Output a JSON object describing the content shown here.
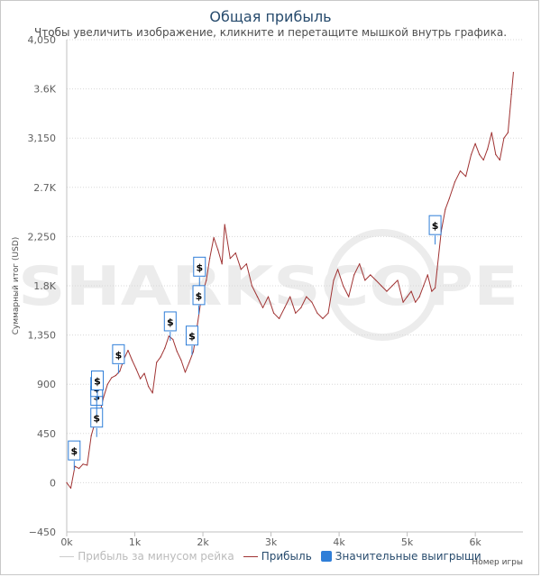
{
  "chart_data": {
    "type": "line",
    "title": "Общая прибыль",
    "subtitle": "Чтобы увеличить изображение, кликните и перетащите мышкой внутрь графика.",
    "ylabel": "Суммарный итог (USD)",
    "xlabel": "Номер игры",
    "ylim": [
      -450,
      4050
    ],
    "xlim": [
      0,
      6700
    ],
    "yticks": [
      -450,
      0,
      450,
      900,
      1350,
      1800,
      2250,
      2700,
      3150,
      3600,
      4050
    ],
    "ytick_labels": [
      "−450",
      "0",
      "450",
      "900",
      "1,350",
      "1.8K",
      "2,250",
      "2.7K",
      "3,150",
      "3.6K",
      "4,050"
    ],
    "xticks": [
      0,
      1000,
      2000,
      3000,
      4000,
      5000,
      6000
    ],
    "xtick_labels": [
      "0k",
      "1k",
      "2k",
      "3k",
      "4k",
      "5k",
      "6k"
    ],
    "grid": true,
    "legend_position": "bottom",
    "watermark": "SHARKSCOPE",
    "series": [
      {
        "name": "Прибыль",
        "color": "#a03333",
        "x": [
          0,
          60,
          120,
          180,
          240,
          300,
          360,
          420,
          480,
          540,
          600,
          660,
          720,
          780,
          840,
          900,
          960,
          1020,
          1080,
          1140,
          1200,
          1260,
          1320,
          1380,
          1440,
          1500,
          1560,
          1620,
          1680,
          1740,
          1800,
          1860,
          1920,
          1980,
          2050,
          2100,
          2160,
          2220,
          2280,
          2320,
          2400,
          2480,
          2560,
          2640,
          2720,
          2800,
          2880,
          2960,
          3040,
          3120,
          3200,
          3280,
          3360,
          3440,
          3520,
          3600,
          3680,
          3760,
          3840,
          3920,
          3980,
          4060,
          4140,
          4220,
          4300,
          4380,
          4460,
          4540,
          4620,
          4700,
          4780,
          4860,
          4940,
          5000,
          5060,
          5120,
          5180,
          5240,
          5300,
          5360,
          5410,
          5440,
          5500,
          5560,
          5620,
          5700,
          5780,
          5860,
          5940,
          6000,
          6060,
          6120,
          6180,
          6240,
          6300,
          6360,
          6420,
          6480,
          6530,
          6560
        ],
        "values": [
          0,
          -50,
          150,
          130,
          170,
          160,
          430,
          560,
          620,
          780,
          900,
          960,
          980,
          1020,
          1130,
          1210,
          1120,
          1040,
          950,
          1000,
          880,
          820,
          1100,
          1150,
          1230,
          1340,
          1310,
          1200,
          1120,
          1010,
          1100,
          1200,
          1450,
          1700,
          1850,
          2050,
          2240,
          2130,
          2000,
          2360,
          2050,
          2100,
          1950,
          2000,
          1800,
          1700,
          1600,
          1700,
          1550,
          1500,
          1600,
          1700,
          1550,
          1600,
          1700,
          1650,
          1550,
          1500,
          1550,
          1850,
          1950,
          1800,
          1700,
          1900,
          2000,
          1850,
          1900,
          1850,
          1800,
          1750,
          1800,
          1850,
          1650,
          1700,
          1750,
          1650,
          1700,
          1800,
          1900,
          1750,
          1780,
          1950,
          2300,
          2500,
          2600,
          2750,
          2850,
          2800,
          3000,
          3100,
          3000,
          2950,
          3050,
          3200,
          3000,
          2950,
          3150,
          3200,
          3550,
          3750
        ]
      }
    ],
    "markers": {
      "name": "Значительные выигрыши",
      "symbol": "$",
      "color": "#2f7ed8",
      "x": [
        110,
        440,
        440,
        440,
        450,
        760,
        1520,
        1840,
        1940,
        1950,
        5410
      ],
      "values": [
        200,
        500,
        700,
        780,
        840,
        1080,
        1380,
        1250,
        1620,
        1880,
        2260
      ]
    },
    "ghost_series": {
      "name": "Прибыль за минусом рейка",
      "color": "#bbbbbb"
    }
  },
  "legend": {
    "items": [
      {
        "label": "Прибыль за минусом рейка",
        "color": "#bbbbbb",
        "muted": true
      },
      {
        "label": "Прибыль",
        "color": "#a03333",
        "muted": false
      },
      {
        "label": "Значительные выигрыши",
        "color": "#2f7ed8",
        "muted": false
      }
    ]
  }
}
